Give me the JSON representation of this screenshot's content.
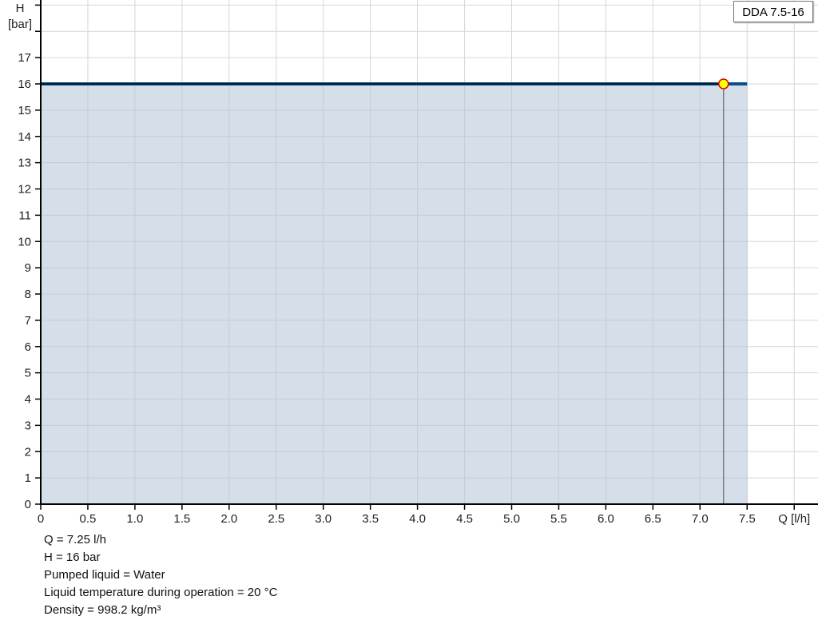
{
  "chart_data": {
    "type": "area",
    "xlabel": "Q [l/h]",
    "ylabel_line1": "H",
    "ylabel_line2": "[bar]",
    "xlim": [
      0,
      8.25
    ],
    "ylim": [
      0,
      19.2
    ],
    "x_ticks": [
      "0",
      "0.5",
      "1.0",
      "1.5",
      "2.0",
      "2.5",
      "3.0",
      "3.5",
      "4.0",
      "4.5",
      "5.0",
      "5.5",
      "6.0",
      "6.5",
      "7.0",
      "7.5"
    ],
    "y_ticks": [
      "0",
      "1",
      "2",
      "3",
      "4",
      "5",
      "6",
      "7",
      "8",
      "9",
      "10",
      "11",
      "12",
      "13",
      "14",
      "15",
      "16",
      "17"
    ],
    "grid": true,
    "series": [
      {
        "name": "DDA 7.5-16",
        "x": [
          0,
          7.5
        ],
        "y": [
          16,
          16
        ],
        "color": "#0b4f8a",
        "fill": "#d0dce7"
      }
    ],
    "operating_point": {
      "x": 7.25,
      "y": 16,
      "fill": "#ffff00",
      "stroke": "#e00000"
    },
    "legend": {
      "label": "DDA 7.5-16",
      "placement": "top-right"
    }
  },
  "info": [
    "Q = 7.25 l/h",
    "H = 16 bar",
    "Pumped liquid = Water",
    "Liquid temperature during operation = 20 °C",
    "Density = 998.2 kg/m³"
  ]
}
